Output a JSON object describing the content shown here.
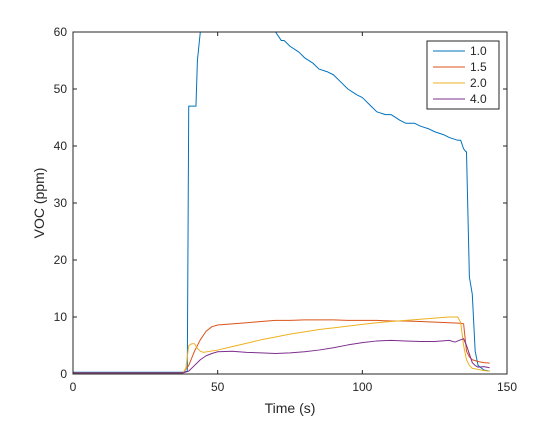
{
  "chart_data": {
    "type": "line",
    "title": "",
    "xlabel": "Time (s)",
    "ylabel": "VOC (ppm)",
    "xlim": [
      0,
      150
    ],
    "ylim": [
      0,
      60
    ],
    "xticks": [
      "0",
      "50",
      "100",
      "150"
    ],
    "yticks": [
      "0",
      "10",
      "20",
      "30",
      "40",
      "50",
      "60"
    ],
    "grid": false,
    "legend_position": "top-right",
    "colors": [
      "#0072BD",
      "#D95319",
      "#EDB120",
      "#7E2F8E"
    ],
    "series": [
      {
        "name": "1.0",
        "x": [
          0,
          38,
          39.5,
          40,
          41,
          41.5,
          42.5,
          43,
          44,
          50,
          60,
          70,
          72,
          73,
          75,
          78,
          80,
          83,
          85,
          88,
          90,
          93,
          95,
          98,
          100,
          103,
          105,
          108,
          110,
          113,
          115,
          118,
          120,
          123,
          125,
          128,
          130,
          133,
          134,
          135,
          135.8,
          136,
          137,
          138,
          139,
          140,
          142,
          144
        ],
        "y": [
          0.3,
          0.3,
          0.5,
          47,
          47,
          47,
          47,
          55,
          60,
          60,
          60,
          60,
          58.5,
          58.5,
          57.5,
          56.5,
          55.5,
          54.5,
          53.5,
          53,
          52.5,
          51,
          50,
          49,
          48.5,
          47,
          46,
          45.5,
          45.5,
          44.5,
          44,
          44,
          43.5,
          43,
          42.5,
          42,
          41.5,
          41,
          41,
          39.5,
          39,
          39,
          17,
          14,
          4,
          1.5,
          0.7,
          0.5
        ]
      },
      {
        "name": "1.5",
        "x": [
          0,
          38,
          40,
          42,
          44,
          46,
          48,
          50,
          55,
          60,
          65,
          70,
          75,
          80,
          85,
          90,
          95,
          100,
          105,
          110,
          115,
          120,
          125,
          130,
          134,
          135,
          136,
          137,
          138,
          140,
          142,
          144
        ],
        "y": [
          0.2,
          0.2,
          1.5,
          4,
          6,
          7.5,
          8.3,
          8.6,
          8.8,
          9.0,
          9.2,
          9.4,
          9.4,
          9.5,
          9.5,
          9.5,
          9.4,
          9.4,
          9.4,
          9.3,
          9.3,
          9.2,
          9.1,
          9.0,
          8.9,
          8.8,
          4,
          3,
          2.5,
          2.2,
          2.0,
          1.9
        ]
      },
      {
        "name": "2.0",
        "x": [
          0,
          38,
          39,
          40,
          41,
          42,
          43,
          44,
          45,
          50,
          55,
          60,
          65,
          70,
          75,
          80,
          85,
          90,
          95,
          100,
          105,
          110,
          115,
          120,
          125,
          130,
          133,
          134,
          135,
          136,
          137,
          138,
          140,
          142,
          144
        ],
        "y": [
          0.2,
          0.2,
          1,
          5,
          5.3,
          5.3,
          4.5,
          4.0,
          3.8,
          4.2,
          4.8,
          5.4,
          6.0,
          6.5,
          7.0,
          7.4,
          7.8,
          8.1,
          8.4,
          8.7,
          9.0,
          9.2,
          9.4,
          9.6,
          9.8,
          10.0,
          10.0,
          9.0,
          5,
          2.5,
          1.5,
          1.0,
          0.8,
          0.6,
          0.5
        ]
      },
      {
        "name": "4.0",
        "x": [
          0,
          38,
          40,
          42,
          44,
          46,
          48,
          50,
          55,
          60,
          65,
          70,
          75,
          80,
          85,
          90,
          95,
          100,
          105,
          110,
          115,
          120,
          125,
          130,
          132,
          134,
          135,
          136,
          137,
          138,
          139,
          140,
          142,
          144
        ],
        "y": [
          0.2,
          0.2,
          0.5,
          1.5,
          2.5,
          3.2,
          3.6,
          3.9,
          4.0,
          3.8,
          3.7,
          3.6,
          3.7,
          3.9,
          4.2,
          4.6,
          5.1,
          5.5,
          5.8,
          5.9,
          5.8,
          5.7,
          5.7,
          5.9,
          5.6,
          6.0,
          6.2,
          5.0,
          3.5,
          2.0,
          1.5,
          1.2,
          1.3,
          1.1
        ]
      }
    ]
  }
}
